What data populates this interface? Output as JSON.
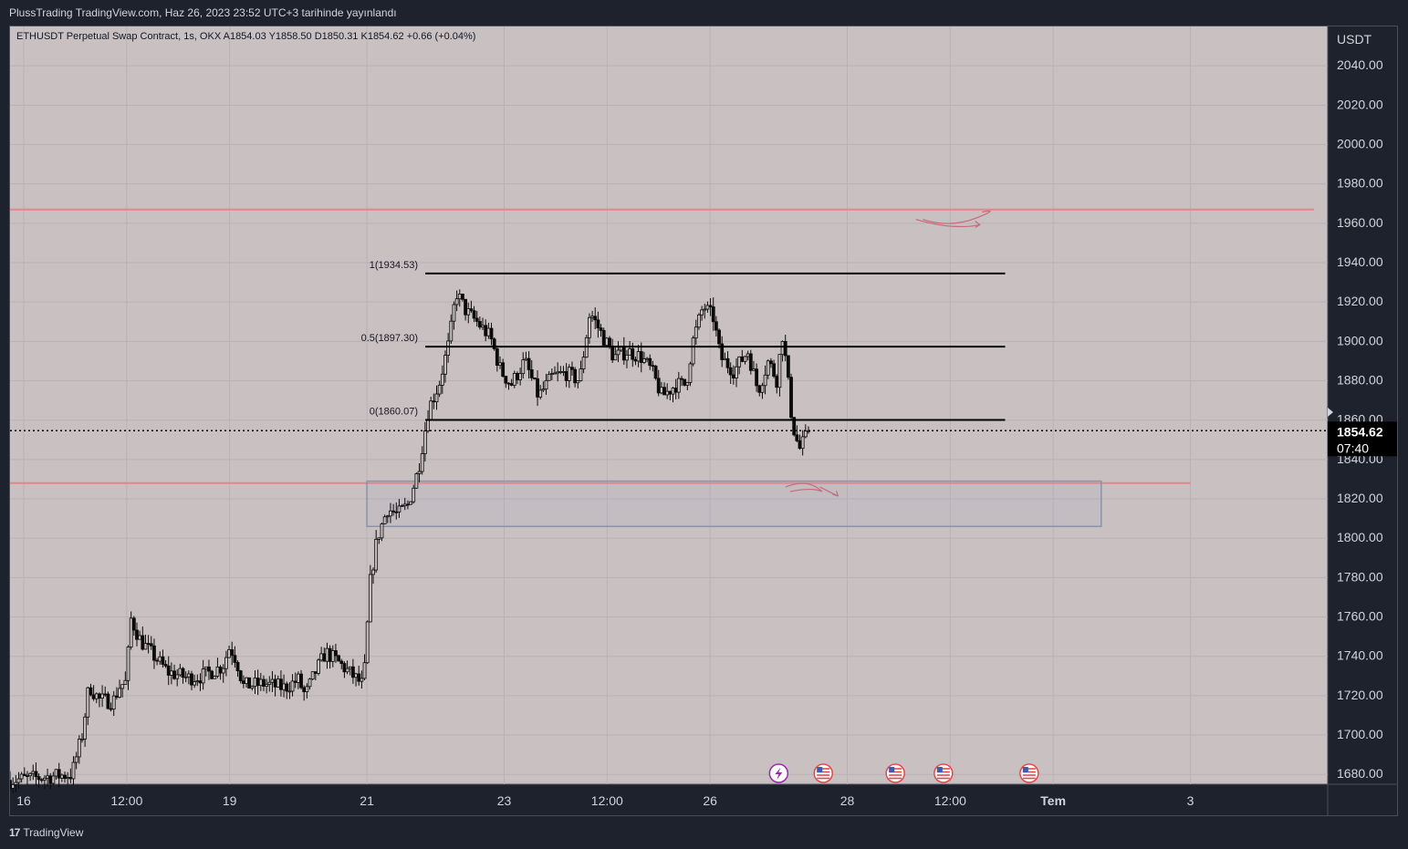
{
  "header": {
    "published": "PlussTrading TradingView.com, Haz 26, 2023 23:52 UTC+3 tarihinde yayınlandı"
  },
  "legend": {
    "text": "ETHUSDT Perpetual Swap Contract, 1s, OKX  A1854.03  Y1858.50  D1850.31  K1854.62  +0.66 (+0.04%)"
  },
  "footer": {
    "brand": "TradingView"
  },
  "colors": {
    "background": "#c9c0c2",
    "candle": "#0b0b0b",
    "red_line": "#e3868c",
    "zone": "#8a93a8",
    "fib": "#000000"
  },
  "chart_data": {
    "type": "candlestick",
    "title": "",
    "currency_label": "USDT",
    "y_range": [
      1675,
      2060
    ],
    "y_ticks": [
      "2040.00",
      "2020.00",
      "2000.00",
      "1980.00",
      "1960.00",
      "1940.00",
      "1920.00",
      "1900.00",
      "1880.00",
      "1860.00",
      "1840.00",
      "1820.00",
      "1800.00",
      "1780.00",
      "1760.00",
      "1740.00",
      "1720.00",
      "1700.00",
      "1680.00"
    ],
    "x_ticks": [
      {
        "label": "16",
        "t": 0
      },
      {
        "label": "12:00",
        "t": 1.5
      },
      {
        "label": "19",
        "t": 3
      },
      {
        "label": "21",
        "t": 5
      },
      {
        "label": "23",
        "t": 7
      },
      {
        "label": "12:00",
        "t": 8.5
      },
      {
        "label": "26",
        "t": 10
      },
      {
        "label": "28",
        "t": 12
      },
      {
        "label": "12:00",
        "t": 13.5
      },
      {
        "label": "Tem",
        "t": 15,
        "bold": true
      },
      {
        "label": "3",
        "t": 17
      }
    ],
    "last_price": {
      "value": 1854.62,
      "label": "1854.62",
      "countdown": "07:40"
    },
    "fib_levels": [
      {
        "label": "1(1934.53)",
        "value": 1934.53
      },
      {
        "label": "0.5(1897.30)",
        "value": 1897.3
      },
      {
        "label": "0(1860.07)",
        "value": 1860.07
      }
    ],
    "fib_time_range": [
      5.85,
      14.3
    ],
    "horizontal_lines": [
      {
        "value": 1967,
        "t_from": -0.4,
        "t_to": 18.8
      },
      {
        "value": 1828,
        "t_from": -0.4,
        "t_to": 17
      }
    ],
    "zone": {
      "top": 1829,
      "bottom": 1806,
      "t_from": 5.0,
      "t_to": 15.7
    },
    "events": [
      {
        "type": "lightning",
        "t": 11.0
      },
      {
        "type": "flag-us",
        "t": 11.65
      },
      {
        "type": "flag-us",
        "t": 12.7
      },
      {
        "type": "flag-us",
        "t": 13.4
      },
      {
        "type": "flag-us",
        "t": 14.65
      }
    ],
    "price_path": [
      [
        -0.2,
        1677
      ],
      [
        0.7,
        1680
      ],
      [
        0.85,
        1700
      ],
      [
        0.95,
        1725
      ],
      [
        1.1,
        1718
      ],
      [
        1.3,
        1717
      ],
      [
        1.4,
        1725
      ],
      [
        1.5,
        1727
      ],
      [
        1.55,
        1760
      ],
      [
        1.7,
        1748
      ],
      [
        1.9,
        1740
      ],
      [
        2.1,
        1732
      ],
      [
        2.4,
        1729
      ],
      [
        2.6,
        1730
      ],
      [
        2.9,
        1735
      ],
      [
        3.0,
        1745
      ],
      [
        3.1,
        1738
      ],
      [
        3.2,
        1725
      ],
      [
        3.5,
        1726
      ],
      [
        3.8,
        1724
      ],
      [
        4.0,
        1728
      ],
      [
        4.1,
        1720
      ],
      [
        4.25,
        1732
      ],
      [
        4.4,
        1742
      ],
      [
        4.55,
        1738
      ],
      [
        4.8,
        1730
      ],
      [
        4.95,
        1725
      ],
      [
        5.05,
        1778
      ],
      [
        5.15,
        1800
      ],
      [
        5.3,
        1815
      ],
      [
        5.45,
        1812
      ],
      [
        5.6,
        1817
      ],
      [
        5.75,
        1835
      ],
      [
        5.9,
        1866
      ],
      [
        6.05,
        1878
      ],
      [
        6.2,
        1900
      ],
      [
        6.3,
        1925
      ],
      [
        6.45,
        1915
      ],
      [
        6.6,
        1910
      ],
      [
        6.8,
        1902
      ],
      [
        6.95,
        1885
      ],
      [
        7.1,
        1878
      ],
      [
        7.3,
        1890
      ],
      [
        7.5,
        1872
      ],
      [
        7.7,
        1882
      ],
      [
        7.9,
        1884
      ],
      [
        8.1,
        1880
      ],
      [
        8.25,
        1915
      ],
      [
        8.4,
        1905
      ],
      [
        8.6,
        1892
      ],
      [
        8.8,
        1895
      ],
      [
        9.0,
        1892
      ],
      [
        9.15,
        1885
      ],
      [
        9.3,
        1872
      ],
      [
        9.5,
        1878
      ],
      [
        9.65,
        1878
      ],
      [
        9.75,
        1900
      ],
      [
        9.9,
        1918
      ],
      [
        10.05,
        1912
      ],
      [
        10.15,
        1892
      ],
      [
        10.35,
        1885
      ],
      [
        10.55,
        1895
      ],
      [
        10.7,
        1875
      ],
      [
        10.85,
        1890
      ],
      [
        10.98,
        1880
      ],
      [
        11.05,
        1905
      ],
      [
        11.12,
        1885
      ],
      [
        11.2,
        1858
      ],
      [
        11.3,
        1845
      ],
      [
        11.45,
        1854.62
      ]
    ]
  }
}
